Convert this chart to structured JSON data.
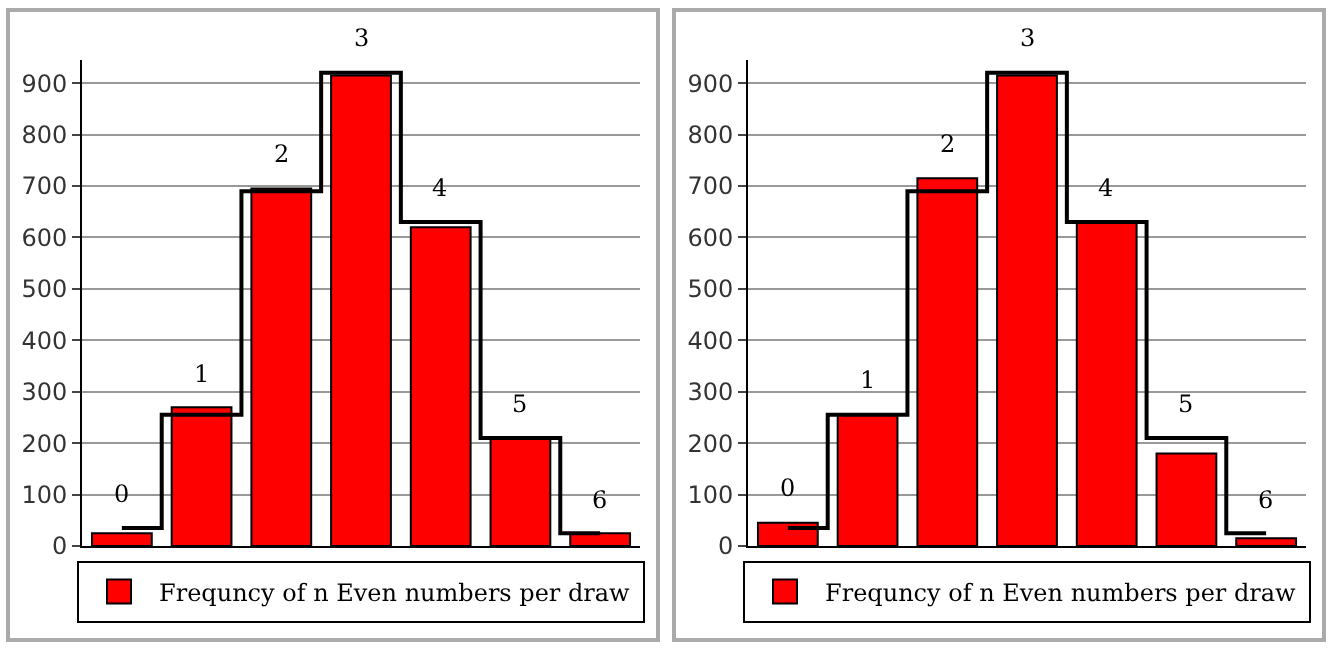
{
  "chart_data": [
    {
      "type": "bar",
      "categories": [
        "0",
        "1",
        "2",
        "3",
        "4",
        "5",
        "6"
      ],
      "series": [
        {
          "name": "Frequncy of n Even numbers per draw",
          "color": "#ff0000",
          "values": [
            25,
            270,
            695,
            915,
            620,
            210,
            25
          ]
        },
        {
          "type": "step",
          "color": "#000000",
          "values": [
            35,
            255,
            690,
            920,
            630,
            210,
            25
          ]
        }
      ],
      "ylim": [
        0,
        945
      ],
      "yticks": [
        0,
        100,
        200,
        300,
        400,
        500,
        600,
        700,
        800,
        900
      ],
      "grid": "y",
      "legend": "bottom",
      "tick_labels": "y"
    },
    {
      "type": "bar",
      "categories": [
        "0",
        "1",
        "2",
        "3",
        "4",
        "5",
        "6"
      ],
      "series": [
        {
          "name": "Frequncy of n Even numbers per draw",
          "color": "#ff0000",
          "values": [
            45,
            255,
            715,
            915,
            630,
            180,
            15
          ]
        },
        {
          "type": "step",
          "color": "#000000",
          "values": [
            35,
            255,
            690,
            920,
            630,
            210,
            25
          ]
        }
      ],
      "ylim": [
        0,
        945
      ],
      "yticks": [
        0,
        100,
        200,
        300,
        400,
        500,
        600,
        700,
        800,
        900
      ],
      "grid": "y",
      "legend": "bottom",
      "tick_labels": "y"
    }
  ]
}
